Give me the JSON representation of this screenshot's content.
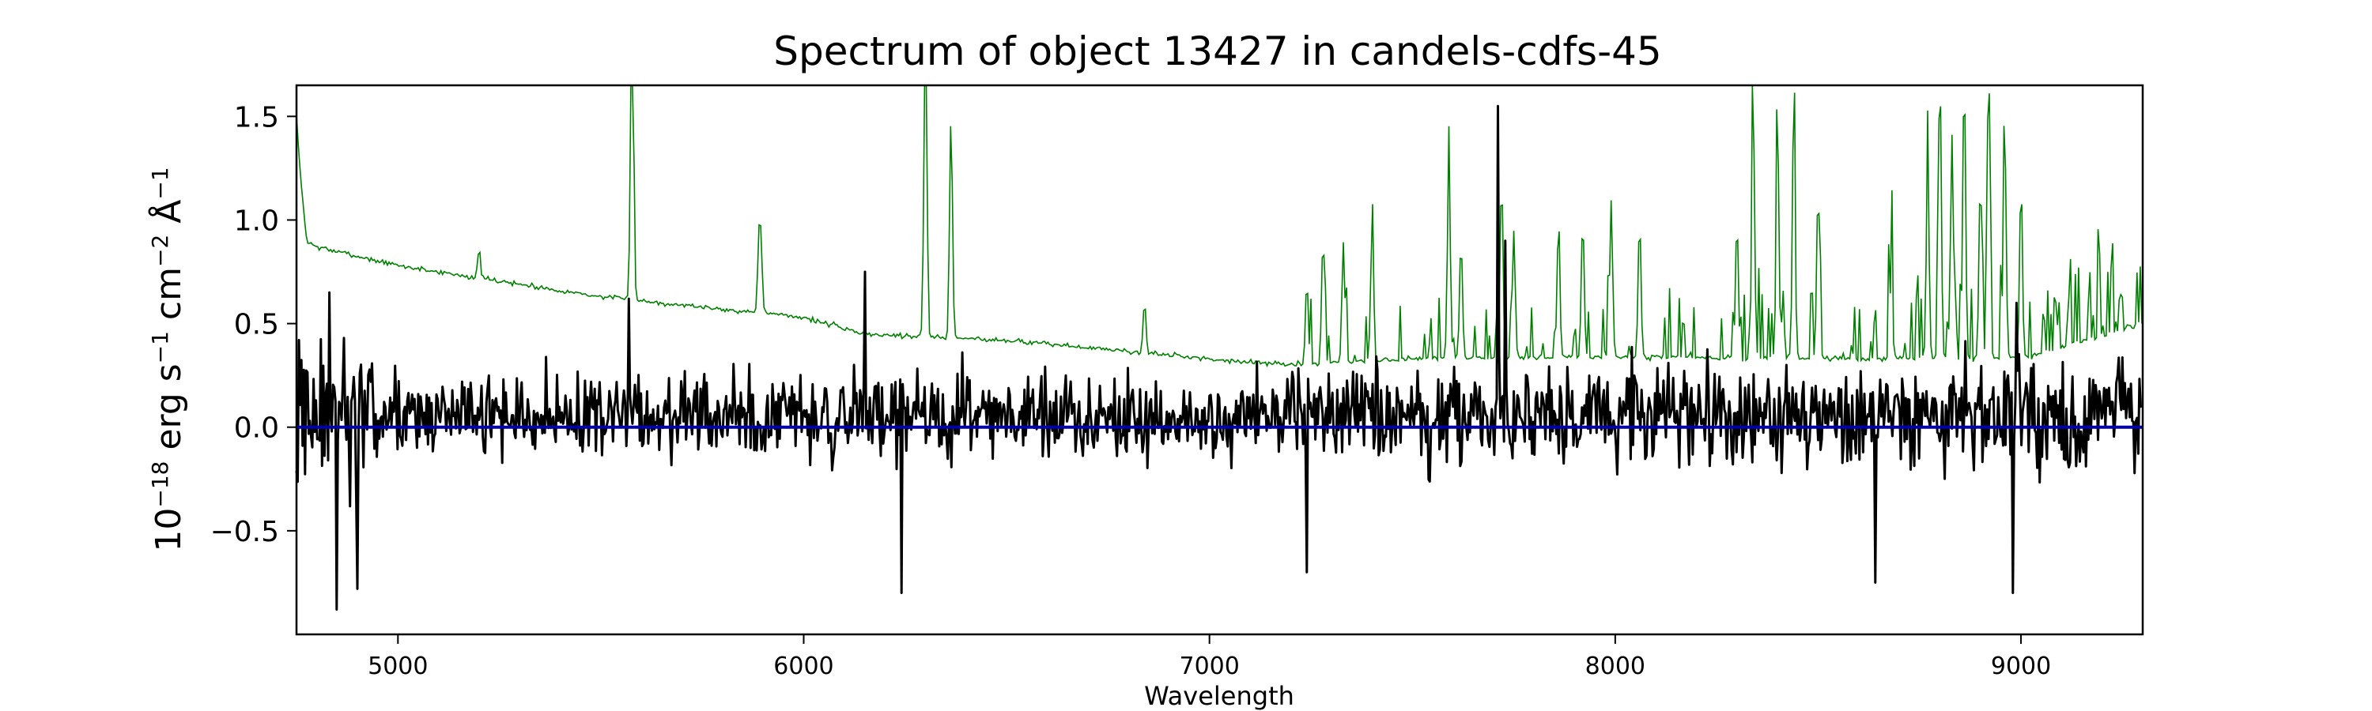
{
  "chart_data": {
    "type": "line",
    "title": "Spectrum of object 13427 in candels-cdfs-45",
    "xlabel": "Wavelength",
    "ylabel_parts": {
      "base": "10",
      "base_exp": "−18",
      "unit1": " erg s",
      "exp1": "−1",
      "unit2": " cm",
      "exp2": "−2",
      "unit3": " Å",
      "exp3": "−1"
    },
    "xlim": [
      4750,
      9300
    ],
    "ylim": [
      -1.0,
      1.65
    ],
    "xticks": [
      5000,
      6000,
      7000,
      8000,
      9000
    ],
    "xtick_labels": [
      "5000",
      "6000",
      "7000",
      "8000",
      "9000"
    ],
    "yticks": [
      -0.5,
      0.0,
      0.5,
      1.0,
      1.5
    ],
    "ytick_labels": [
      "−0.5",
      "0.0",
      "0.5",
      "1.0",
      "1.5"
    ],
    "grid": false,
    "series": [
      {
        "role": "noise",
        "color": "#008000",
        "continuum_points": [
          [
            4750,
            1.5
          ],
          [
            4760,
            1.2
          ],
          [
            4775,
            0.9
          ],
          [
            4800,
            0.87
          ],
          [
            5000,
            0.78
          ],
          [
            5500,
            0.63
          ],
          [
            6000,
            0.53
          ],
          [
            6150,
            0.45
          ],
          [
            6500,
            0.42
          ],
          [
            7000,
            0.33
          ],
          [
            7200,
            0.3
          ],
          [
            7500,
            0.33
          ],
          [
            8000,
            0.34
          ],
          [
            8500,
            0.33
          ],
          [
            9000,
            0.33
          ],
          [
            9300,
            0.5
          ]
        ],
        "lines": [
          [
            5200,
            0.85
          ],
          [
            5577,
            2.4
          ],
          [
            5890,
            0.9
          ],
          [
            5895,
            0.8
          ],
          [
            6300,
            2.2
          ],
          [
            6363,
            1.5
          ],
          [
            6840,
            0.6
          ],
          [
            7240,
            0.7
          ],
          [
            7280,
            0.92
          ],
          [
            7330,
            0.9
          ],
          [
            7400,
            0.85
          ],
          [
            7590,
            1.25
          ],
          [
            7620,
            0.9
          ],
          [
            7720,
            1.2
          ],
          [
            7750,
            0.95
          ],
          [
            7860,
            0.95
          ],
          [
            7920,
            1.0
          ],
          [
            7990,
            1.1
          ],
          [
            8060,
            1.0
          ],
          [
            8300,
            1.0
          ],
          [
            8340,
            1.5
          ],
          [
            8400,
            1.35
          ],
          [
            8440,
            1.35
          ],
          [
            8500,
            1.15
          ],
          [
            8680,
            0.7
          ],
          [
            8770,
            1.2
          ],
          [
            8800,
            1.7
          ],
          [
            8830,
            1.4
          ],
          [
            8860,
            1.7
          ],
          [
            8900,
            1.2
          ],
          [
            8920,
            1.7
          ],
          [
            8960,
            1.4
          ],
          [
            9000,
            1.15
          ]
        ]
      },
      {
        "role": "flux",
        "color": "#000000",
        "spikes": [
          [
            4830,
            0.65
          ],
          [
            4850,
            -0.88
          ],
          [
            4900,
            -0.78
          ],
          [
            5570,
            0.62
          ],
          [
            6150,
            0.75
          ],
          [
            6240,
            -0.8
          ],
          [
            7240,
            -0.7
          ],
          [
            7710,
            1.55
          ],
          [
            7730,
            0.9
          ],
          [
            8640,
            -0.75
          ],
          [
            8980,
            -0.8
          ],
          [
            8990,
            0.6
          ]
        ]
      },
      {
        "role": "zero-line",
        "color": "#0000b0",
        "y": 0.0
      }
    ]
  }
}
